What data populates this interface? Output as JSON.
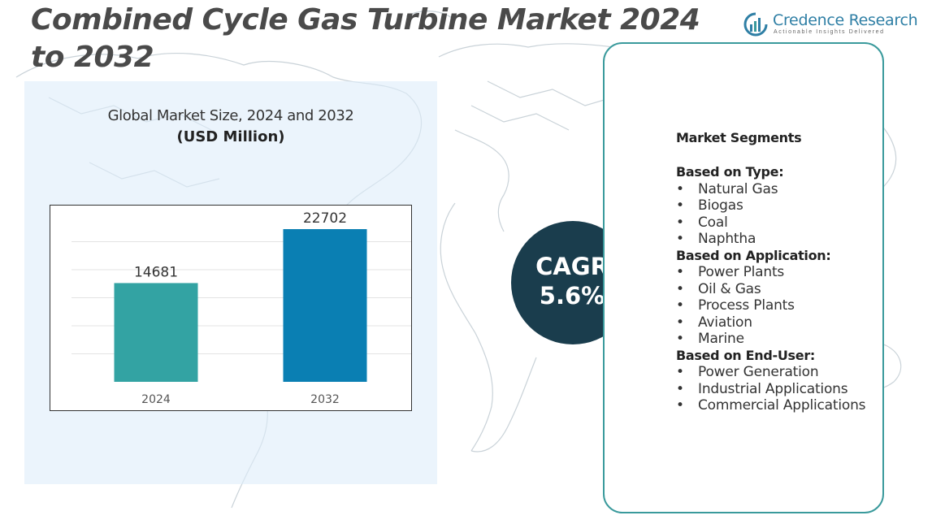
{
  "title": "Combined Cycle Gas Turbine Market 2024 to 2032",
  "logo": {
    "name": "Credence Research",
    "tagline": "Actionable Insights Delivered"
  },
  "chart_data": {
    "type": "bar",
    "title": "Global Market Size, 2024 and 2032",
    "unit": "(USD Million)",
    "categories": [
      "2024",
      "2032"
    ],
    "values": [
      14681,
      22702
    ],
    "data_labels": [
      "14681",
      "22702"
    ],
    "bar_colors": [
      "#33a3a3",
      "#0a7fb3"
    ],
    "ylim": [
      0,
      25000
    ],
    "grid": true,
    "legend": "none"
  },
  "cagr": {
    "label": "CAGR",
    "value": "5.6%"
  },
  "segments": {
    "heading": "Market Segments",
    "groups": [
      {
        "title": "Based on Type:",
        "items": [
          "Natural Gas",
          "Biogas",
          "Coal",
          "Naphtha"
        ]
      },
      {
        "title": "Based on Application:",
        "items": [
          "Power Plants",
          "Oil & Gas",
          "Process Plants",
          "Aviation",
          "Marine"
        ]
      },
      {
        "title": "Based on End-User:",
        "items": [
          "Power Generation",
          "Industrial Applications",
          "Commercial Applications"
        ]
      }
    ]
  },
  "colors": {
    "accent": "#3a9a9c",
    "cagr_circle": "#1a3d4d",
    "panel": "#deecfa"
  }
}
